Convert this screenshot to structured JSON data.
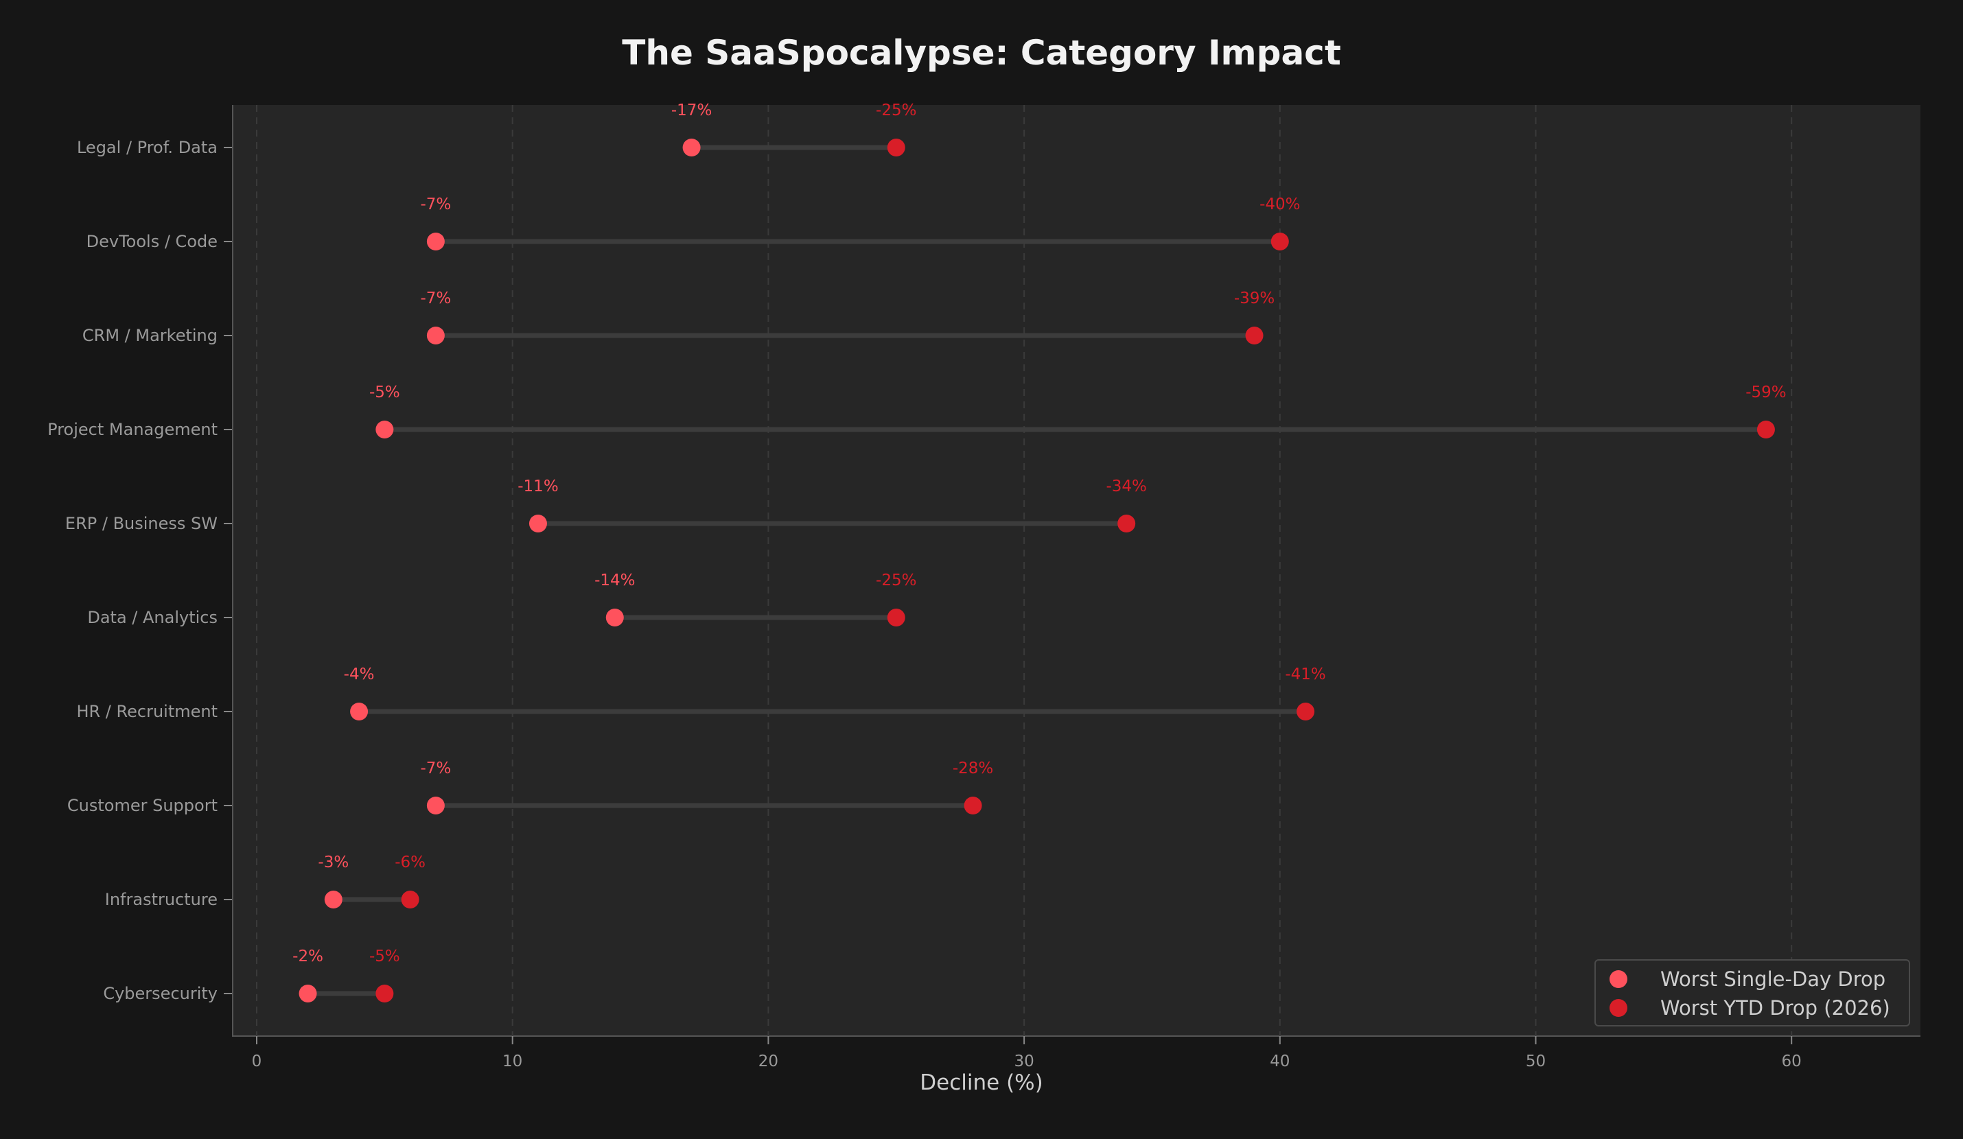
{
  "header": {
    "title": "The SaaSpocalypse: Category Impact"
  },
  "axes": {
    "xlabel": "Decline (%)"
  },
  "legend": {
    "items": [
      {
        "label": "Worst Single-Day Drop",
        "color": "#ff525d"
      },
      {
        "label": "Worst YTD Drop (2026)",
        "color": "#d91e28"
      }
    ]
  },
  "chart_data": {
    "type": "dumbbell",
    "title": "The SaaSpocalypse: Category Impact",
    "xlabel": "Decline (%)",
    "ylabel": "",
    "xlim": [
      -1,
      65
    ],
    "xticks": [
      0,
      10,
      20,
      30,
      40,
      50,
      60
    ],
    "grid": "vertical dashed",
    "legend_position": "lower right",
    "categories": [
      "Legal / Prof. Data",
      "DevTools / Code",
      "CRM / Marketing",
      "Project Management",
      "ERP / Business SW",
      "Data / Analytics",
      "HR / Recruitment",
      "Customer Support",
      "Infrastructure",
      "Cybersecurity"
    ],
    "series": [
      {
        "name": "Worst Single-Day Drop",
        "color": "#ff525d",
        "values": [
          17,
          7,
          7,
          5,
          11,
          14,
          4,
          7,
          3,
          2
        ],
        "labels": [
          "-17%",
          "-7%",
          "-7%",
          "-5%",
          "-11%",
          "-14%",
          "-4%",
          "-7%",
          "-3%",
          "-2%"
        ]
      },
      {
        "name": "Worst YTD Drop (2026)",
        "color": "#d91e28",
        "values": [
          25,
          40,
          39,
          59,
          34,
          25,
          41,
          28,
          6,
          5
        ],
        "labels": [
          "-25%",
          "-40%",
          "-39%",
          "-59%",
          "-34%",
          "-25%",
          "-41%",
          "-28%",
          "-6%",
          "-5%"
        ]
      }
    ]
  }
}
